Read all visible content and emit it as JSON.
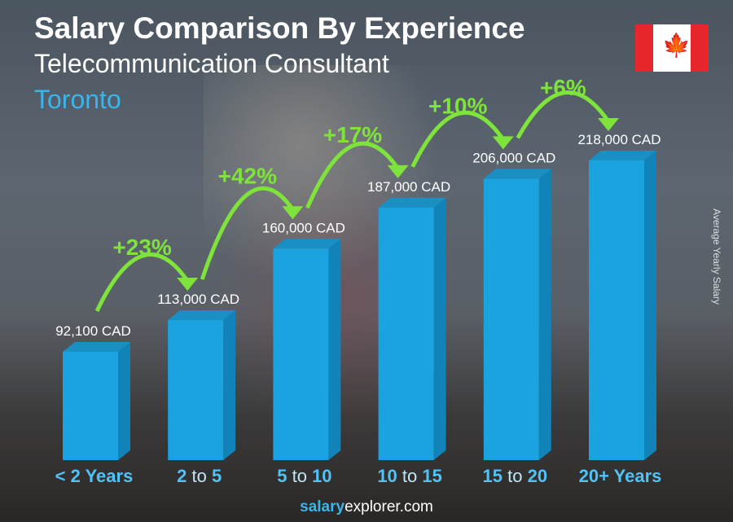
{
  "title": "Salary Comparison By Experience",
  "subtitle": "Telecommunication Consultant",
  "city": "Toronto",
  "flag_icon": "canada-flag-icon",
  "footer": {
    "bold": "salary",
    "rest": "explorer.com"
  },
  "chart_data": {
    "type": "bar",
    "categories": [
      [
        "< 2 Years"
      ],
      [
        "2",
        "to",
        "5"
      ],
      [
        "5",
        "to",
        "10"
      ],
      [
        "10",
        "to",
        "15"
      ],
      [
        "15",
        "to",
        "20"
      ],
      [
        "20+ Years"
      ]
    ],
    "values": [
      92100,
      113000,
      160000,
      187000,
      206000,
      218000
    ],
    "value_labels": [
      "92,100 CAD",
      "113,000 CAD",
      "160,000 CAD",
      "187,000 CAD",
      "206,000 CAD",
      "218,000 CAD"
    ],
    "changes": [
      "+23%",
      "+42%",
      "+17%",
      "+10%",
      "+6%"
    ],
    "ylabel": "Average Yearly Salary",
    "colors": {
      "bar": "#1ba3df",
      "bar_side": "#1283b8",
      "bar_top": "#1a8fc4",
      "change": "#7ee33a",
      "category": "#4fc3f7"
    }
  }
}
